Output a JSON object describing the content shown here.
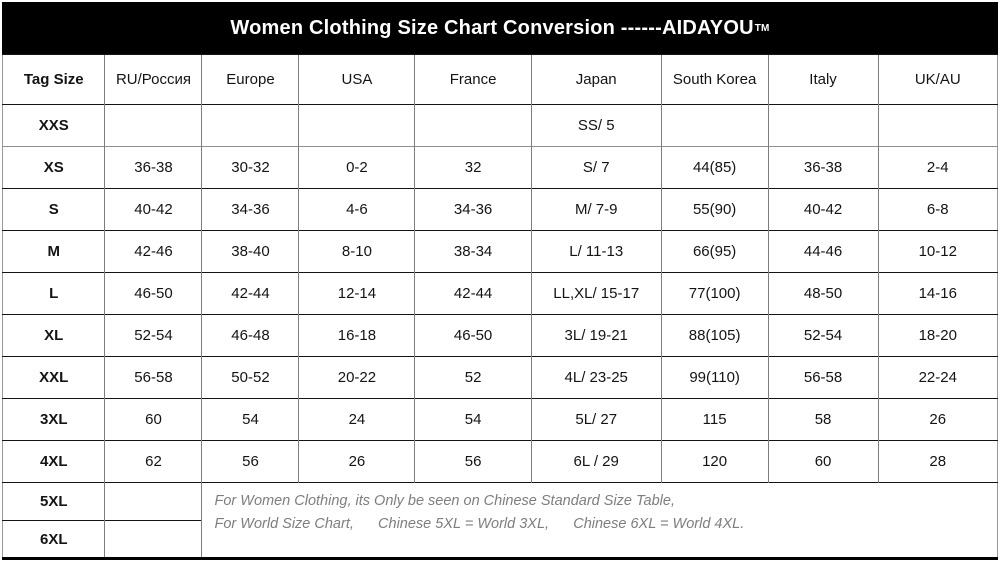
{
  "title": {
    "main": "Women Clothing Size Chart Conversion ------AIDAYOU",
    "trademark": "TM"
  },
  "chart_data": {
    "type": "table",
    "title": "Women Clothing Size Chart Conversion ------AIDAYOU™",
    "columns": [
      "Tag Size",
      "RU/Россия",
      "Europe",
      "USA",
      "France",
      "Japan",
      "South Korea",
      "Italy",
      "UK/AU"
    ],
    "rows": [
      [
        "XXS",
        "",
        "",
        "",
        "",
        "SS/ 5",
        "",
        "",
        ""
      ],
      [
        "XS",
        "36-38",
        "30-32",
        "0-2",
        "32",
        "S/ 7",
        "44(85)",
        "36-38",
        "2-4"
      ],
      [
        "S",
        "40-42",
        "34-36",
        "4-6",
        "34-36",
        "M/ 7-9",
        "55(90)",
        "40-42",
        "6-8"
      ],
      [
        "M",
        "42-46",
        "38-40",
        "8-10",
        "38-34",
        "L/ 11-13",
        "66(95)",
        "44-46",
        "10-12"
      ],
      [
        "L",
        "46-50",
        "42-44",
        "12-14",
        "42-44",
        "LL,XL/ 15-17",
        "77(100)",
        "48-50",
        "14-16"
      ],
      [
        "XL",
        "52-54",
        "46-48",
        "16-18",
        "46-50",
        "3L/ 19-21",
        "88(105)",
        "52-54",
        "18-20"
      ],
      [
        "XXL",
        "56-58",
        "50-52",
        "20-22",
        "52",
        "4L/ 23-25",
        "99(110)",
        "56-58",
        "22-24"
      ],
      [
        "3XL",
        "60",
        "54",
        "24",
        "54",
        "5L/ 27",
        "115",
        "58",
        "26"
      ],
      [
        "4XL",
        "62",
        "56",
        "26",
        "56",
        "6L / 29",
        "120",
        "60",
        "28"
      ]
    ],
    "tail_rows": [
      {
        "label": "5XL",
        "ru": ""
      },
      {
        "label": "6XL",
        "ru": ""
      }
    ],
    "note_lines": [
      "For Women Clothing, its Only be seen on Chinese Standard Size Table,",
      "For World Size Chart,      Chinese 5XL = World 3XL,      Chinese 6XL = World 4XL."
    ],
    "layout": {
      "column_widths_pct": [
        10.3,
        9.75,
        9.75,
        11.65,
        11.7,
        13.05,
        10.75,
        11.05,
        12.0
      ],
      "legend_position": "none",
      "grid": "on"
    },
    "colors": {
      "title_bg": "#000000",
      "title_text": "#ffffff",
      "grid_horizontal": "#141414",
      "grid_vertical": "#7d7d7d",
      "note_text": "#7e7e7e"
    }
  }
}
